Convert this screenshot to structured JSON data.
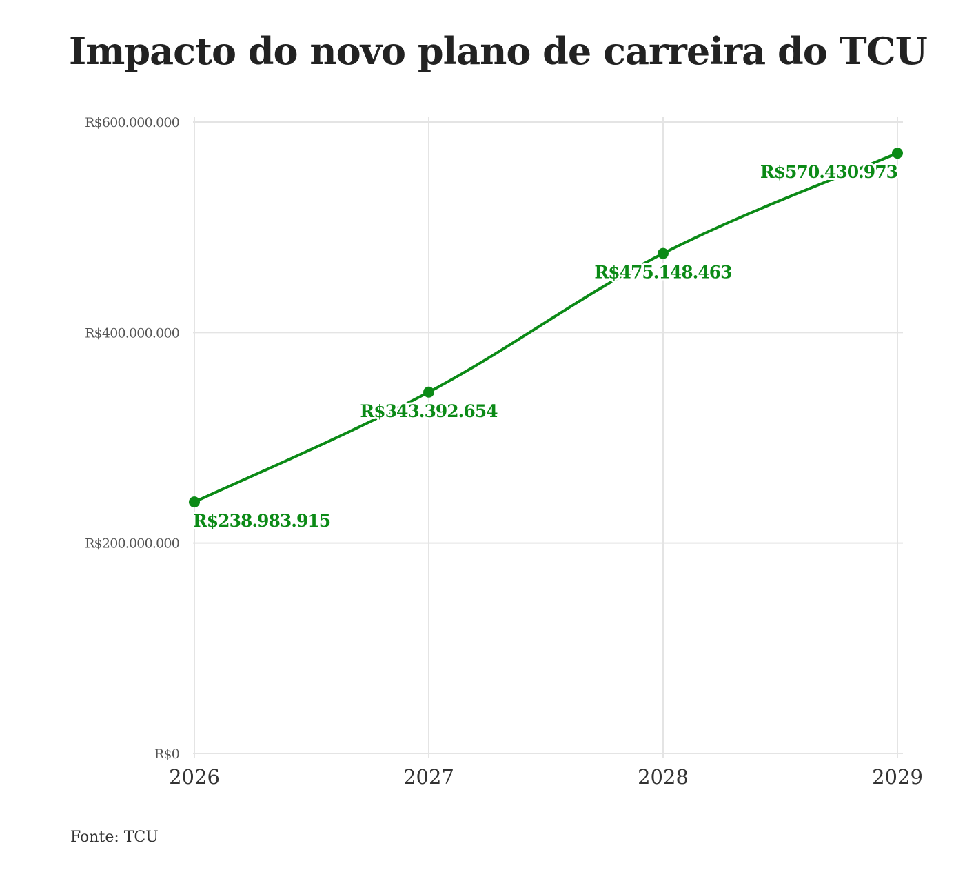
{
  "title": "Impacto do novo plano de carreira do TCU",
  "source": "Fonte: TCU",
  "colors": {
    "line": "#0b8a16",
    "label": "#0b8a16",
    "grid": "#e4e4e4",
    "tick_text": "#555555",
    "x_tick_text": "#333333"
  },
  "chart_data": {
    "type": "line",
    "x": [
      "2026",
      "2027",
      "2028",
      "2029"
    ],
    "series": [
      {
        "values": [
          238983915,
          343392654,
          475148463,
          570430973
        ],
        "labels": [
          "R$238.983.915",
          "R$343.392.654",
          "R$475.148.463",
          "R$570.430.973"
        ]
      }
    ],
    "ylim": [
      0,
      600000000
    ],
    "yticks": [
      {
        "value": 0,
        "label": "R$0"
      },
      {
        "value": 200000000,
        "label": "R$200.000.000"
      },
      {
        "value": 400000000,
        "label": "R$400.000.000"
      },
      {
        "value": 600000000,
        "label": "R$600.000.000"
      }
    ],
    "grid": true,
    "xlabel": "",
    "ylabel": ""
  }
}
